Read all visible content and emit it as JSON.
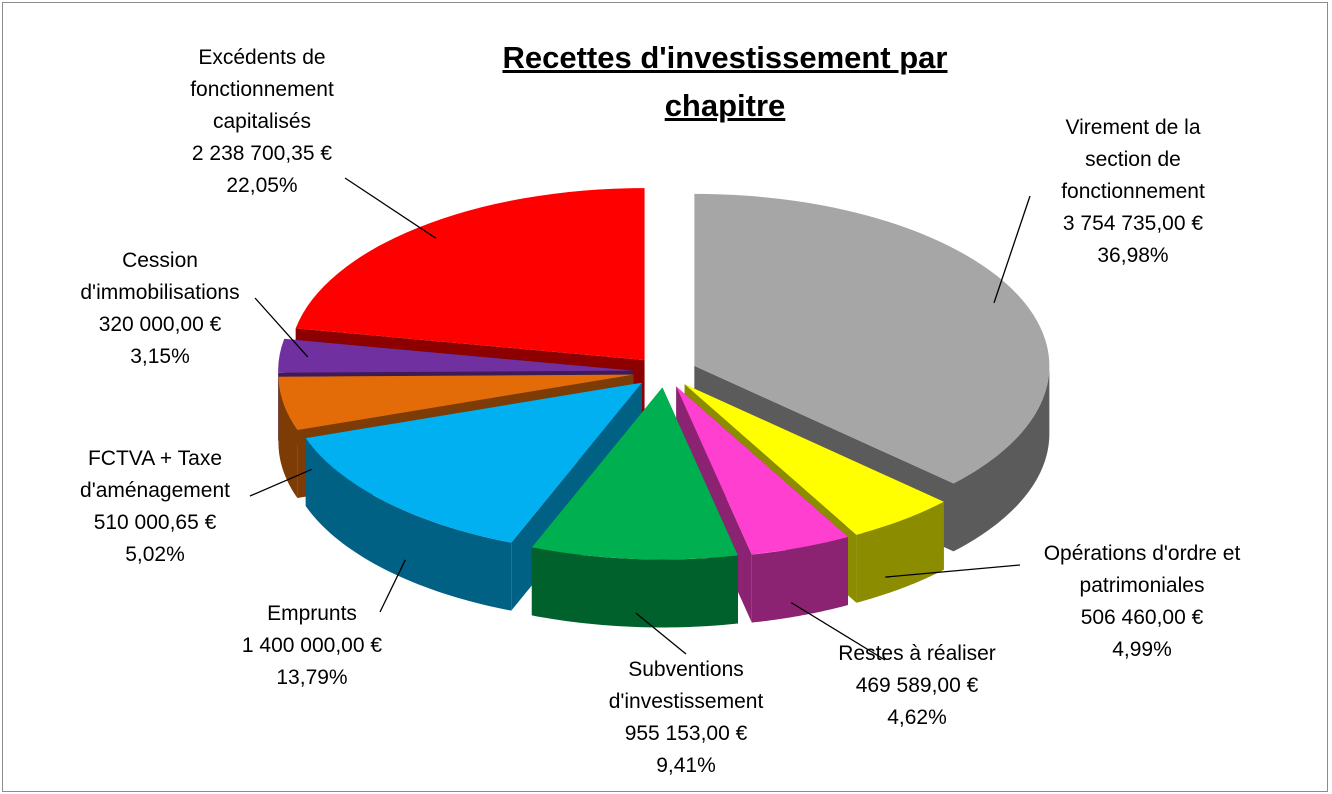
{
  "chart_data": {
    "type": "pie3d",
    "title": "Recettes d'investissement par chapitre",
    "categories": [
      "Virement de la section de fonctionnement",
      "Opérations d'ordre et patrimoniales",
      "Restes à réaliser",
      "Subventions d'investissement",
      "Emprunts",
      "FCTVA + Taxe d'aménagement",
      "Cession d'immobilisations",
      "Excédents de fonctionnement capitalisés"
    ],
    "values": [
      3754735.0,
      506460.0,
      469589.0,
      955153.0,
      1400000.0,
      510000.65,
      320000.0,
      2238700.35
    ],
    "value_labels": [
      "3 754 735,00 €",
      "506 460,00 €",
      "469 589,00 €",
      "955 153,00 €",
      "1 400 000,00 €",
      "510 000,65 €",
      "320 000,00 €",
      "2 238 700,35 €"
    ],
    "percent": [
      36.98,
      4.99,
      4.62,
      9.41,
      13.79,
      5.02,
      3.15,
      22.05
    ],
    "percent_labels": [
      "36,98%",
      "4,99%",
      "4,62%",
      "9,41%",
      "13,79%",
      "5,02%",
      "3,15%",
      "22,05%"
    ],
    "colors": [
      "#a6a6a6",
      "#ffff00",
      "#ff3fd0",
      "#00b050",
      "#00b0f0",
      "#e36c09",
      "#7030a0",
      "#ff0000"
    ]
  }
}
